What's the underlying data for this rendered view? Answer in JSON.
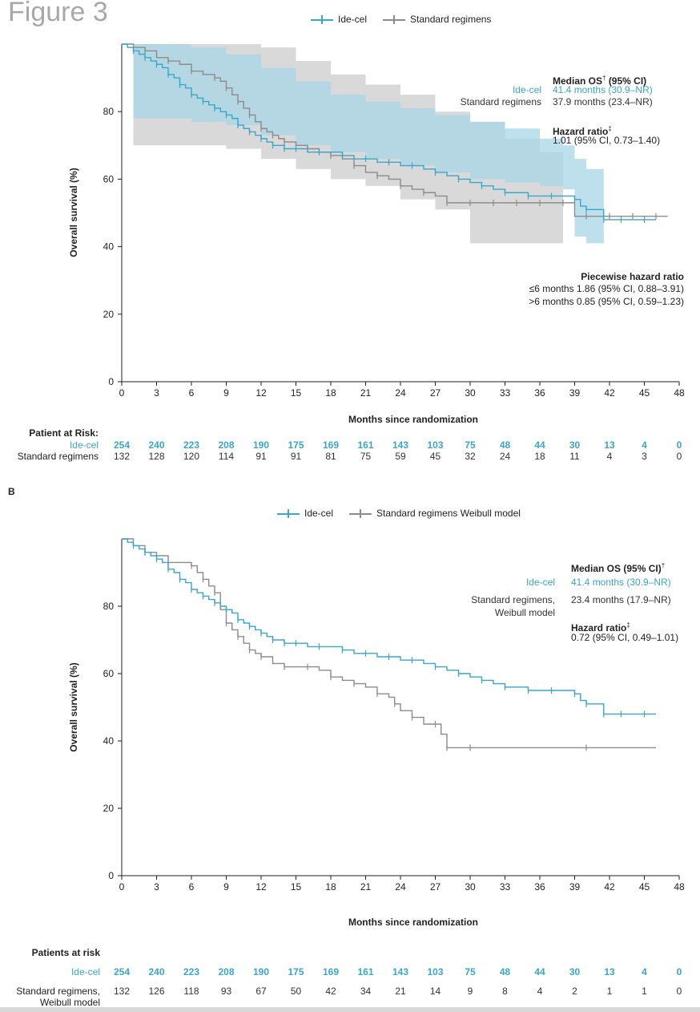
{
  "figure_title": "Figure 3",
  "panel_b_label": "B",
  "colors": {
    "ide_cel": "#3aa7c9",
    "standard": "#8c8c8c",
    "ci_ide": "#a8d6e6",
    "ci_std": "#d9d9d9"
  },
  "panelA": {
    "legend": {
      "ide_cel": "Ide-cel",
      "standard": "Standard regimens"
    },
    "ylabel": "Overall survival (%)",
    "xlabel": "Months since randomization",
    "median": {
      "heading": "Median OS",
      "heading_mark": "†",
      "heading_ci": "(95% CI)",
      "ide_label": "Ide-cel",
      "ide_value": "41.4 months (30.9–NR)",
      "std_label": "Standard regimens",
      "std_value": "37.9 months (23.4–NR)"
    },
    "hazard": {
      "heading": "Hazard ratio",
      "mark": "‡",
      "value": "1.01 (95% CI, 0.73–1.40)"
    },
    "piecewise": {
      "heading": "Piecewise hazard ratio",
      "line1": "≤6 months 1.86 (95% CI, 0.88–3.91)",
      "line2": ">6 months 0.85 (95% CI, 0.59–1.23)"
    },
    "risk": {
      "heading": "Patient at Risk:",
      "ide_label": "Ide-cel",
      "std_label": "Standard regimens",
      "ide": [
        "254",
        "240",
        "223",
        "208",
        "190",
        "175",
        "169",
        "161",
        "143",
        "103",
        "75",
        "48",
        "44",
        "30",
        "13",
        "4",
        "0"
      ],
      "std": [
        "132",
        "128",
        "120",
        "114",
        "91",
        "91",
        "81",
        "75",
        "59",
        "45",
        "32",
        "24",
        "18",
        "11",
        "4",
        "3",
        "0"
      ]
    }
  },
  "panelB": {
    "legend": {
      "ide_cel": "Ide-cel",
      "standard": "Standard regimens Weibull model"
    },
    "ylabel": "Overall survival (%)",
    "xlabel": "Months since randomization",
    "median": {
      "heading": "Median OS (95% CI)",
      "heading_mark": "†",
      "ide_label": "Ide-cel",
      "ide_value": "41.4 months (30.9–NR)",
      "std_label_1": "Standard regimens,",
      "std_label_2": "Weibull model",
      "std_value": "23.4 months (17.9–NR)"
    },
    "hazard": {
      "heading": "Hazard ratio",
      "mark": "‡",
      "value": "0.72 (95% CI, 0.49–1.01)"
    },
    "risk": {
      "heading": "Patients at risk",
      "ide_label": "Ide-cel",
      "std_label_1": "Standard regimens,",
      "std_label_2": "Weibull model",
      "ide": [
        "254",
        "240",
        "223",
        "208",
        "190",
        "175",
        "169",
        "161",
        "143",
        "103",
        "75",
        "48",
        "44",
        "30",
        "13",
        "4",
        "0"
      ],
      "std": [
        "132",
        "126",
        "118",
        "93",
        "67",
        "50",
        "42",
        "34",
        "21",
        "14",
        "9",
        "8",
        "4",
        "2",
        "1",
        "1",
        "0"
      ]
    }
  },
  "chart_data": [
    {
      "type": "line",
      "title": "",
      "xlabel": "Months since randomization",
      "ylabel": "Overall survival (%)",
      "xlim": [
        0,
        48
      ],
      "ylim": [
        0,
        100
      ],
      "xticks": [
        0,
        3,
        6,
        9,
        12,
        15,
        18,
        21,
        24,
        27,
        30,
        33,
        36,
        39,
        42,
        45,
        48
      ],
      "yticks": [
        0,
        20,
        40,
        60,
        80
      ],
      "legend": "top",
      "series": [
        {
          "name": "Ide-cel",
          "x": [
            0,
            0.5,
            1,
            1.5,
            2,
            2.5,
            3,
            3.5,
            4,
            4.5,
            5,
            5.5,
            6,
            6.5,
            7,
            7.5,
            8,
            8.5,
            9,
            9.5,
            10,
            10.5,
            11,
            11.5,
            12,
            12.5,
            13,
            13.5,
            14,
            14.5,
            15,
            16,
            17,
            18,
            19,
            20,
            21,
            22,
            23,
            24,
            25,
            26,
            27,
            28,
            29,
            30,
            31,
            32,
            33,
            34,
            35,
            36,
            37,
            38,
            39,
            39.5,
            40,
            41,
            41.5,
            42,
            43,
            44,
            45,
            46
          ],
          "y": [
            100,
            99,
            98,
            97,
            96,
            95,
            94,
            93,
            91,
            90,
            88,
            87,
            85,
            84,
            83,
            82,
            81,
            80,
            79,
            78,
            76,
            75,
            74,
            73,
            72,
            71,
            70,
            70,
            69,
            69,
            69,
            68,
            68,
            68,
            67,
            66,
            66,
            65,
            65,
            64,
            64,
            63,
            62,
            61,
            60,
            59,
            58,
            57,
            56,
            56,
            55,
            55,
            55,
            55,
            54,
            52,
            51,
            51,
            48,
            48,
            48,
            48,
            48,
            48
          ]
        },
        {
          "name": "Standard regimens",
          "x": [
            0,
            1,
            2,
            3,
            4,
            5,
            6,
            7,
            8,
            8.5,
            9,
            9.5,
            10,
            10.5,
            11,
            11.5,
            12,
            12.5,
            13,
            13.5,
            14,
            15,
            16,
            17,
            18,
            19,
            20,
            21,
            22,
            23,
            24,
            25,
            26,
            27,
            28,
            29,
            30,
            31,
            32,
            33,
            34,
            35,
            36,
            37,
            38,
            39,
            40,
            41,
            42,
            43,
            44,
            45,
            46,
            47
          ],
          "y": [
            100,
            99,
            98,
            96,
            95,
            94,
            92,
            91,
            90,
            89,
            87,
            85,
            83,
            81,
            79,
            77,
            75,
            74,
            73,
            72,
            71,
            70,
            69,
            68,
            67,
            66,
            64,
            62,
            61,
            60,
            58,
            57,
            56,
            55,
            53,
            53,
            53,
            53,
            53,
            53,
            53,
            53,
            53,
            53,
            53,
            49,
            49,
            49,
            49,
            49,
            49,
            49,
            49,
            49
          ]
        }
      ],
      "ci_bands": [
        {
          "name": "Ide-cel 95% CI",
          "x": [
            1,
            3,
            6,
            9,
            12,
            15,
            18,
            21,
            24,
            27,
            30,
            33,
            36,
            38,
            39,
            40,
            41.5
          ],
          "lower": [
            78,
            78,
            77,
            76,
            73,
            70,
            68,
            66,
            64,
            62,
            60,
            59,
            58,
            57,
            43,
            41,
            40
          ],
          "upper": [
            100,
            100,
            99,
            97,
            93,
            89,
            85,
            83,
            81,
            79,
            77,
            75,
            72,
            70,
            66,
            63,
            62
          ]
        },
        {
          "name": "Standard regimens 95% CI",
          "x": [
            1,
            3,
            6,
            9,
            12,
            15,
            18,
            21,
            24,
            27,
            30,
            33,
            36,
            38
          ],
          "lower": [
            70,
            70,
            70,
            69,
            66,
            63,
            60,
            58,
            54,
            51,
            41,
            41,
            41,
            41
          ],
          "upper": [
            100,
            100,
            100,
            100,
            99,
            95,
            91,
            88,
            85,
            80,
            77,
            72,
            68,
            65
          ]
        }
      ]
    },
    {
      "type": "line",
      "title": "",
      "xlabel": "Months since randomization",
      "ylabel": "Overall survival (%)",
      "xlim": [
        0,
        48
      ],
      "ylim": [
        0,
        100
      ],
      "xticks": [
        0,
        3,
        6,
        9,
        12,
        15,
        18,
        21,
        24,
        27,
        30,
        33,
        36,
        39,
        42,
        45,
        48
      ],
      "yticks": [
        0,
        20,
        40,
        60,
        80
      ],
      "legend": "top",
      "series": [
        {
          "name": "Ide-cel",
          "x": [
            0,
            0.5,
            1,
            1.5,
            2,
            2.5,
            3,
            3.5,
            4,
            4.5,
            5,
            5.5,
            6,
            6.5,
            7,
            7.5,
            8,
            8.5,
            9,
            9.5,
            10,
            10.5,
            11,
            11.5,
            12,
            12.5,
            13,
            13.5,
            14,
            14.5,
            15,
            16,
            17,
            18,
            19,
            20,
            21,
            22,
            23,
            24,
            25,
            26,
            27,
            28,
            29,
            30,
            31,
            32,
            33,
            34,
            35,
            36,
            37,
            38,
            39,
            39.5,
            40,
            41,
            41.5,
            42,
            43,
            44,
            45,
            46
          ],
          "y": [
            100,
            99,
            98,
            97,
            96,
            95,
            94,
            93,
            91,
            90,
            88,
            87,
            85,
            84,
            83,
            82,
            81,
            80,
            79,
            78,
            76,
            75,
            74,
            73,
            72,
            71,
            70,
            70,
            69,
            69,
            69,
            68,
            68,
            68,
            67,
            66,
            66,
            65,
            65,
            64,
            64,
            63,
            62,
            61,
            60,
            59,
            58,
            57,
            56,
            56,
            55,
            55,
            55,
            55,
            54,
            52,
            51,
            51,
            48,
            48,
            48,
            48,
            48,
            48
          ]
        },
        {
          "name": "Standard regimens Weibull model",
          "x": [
            0,
            1,
            2,
            3,
            4,
            5,
            6,
            6.5,
            7,
            7.5,
            8,
            8.5,
            9,
            9.5,
            10,
            10.5,
            11,
            11.5,
            12,
            13,
            14,
            15,
            16,
            17,
            18,
            19,
            20,
            21,
            22,
            23,
            23.5,
            24,
            25,
            26,
            27,
            27.5,
            28,
            29,
            30,
            35,
            40,
            46
          ],
          "y": [
            100,
            98,
            96,
            95,
            93,
            93,
            92,
            90,
            88,
            86,
            84,
            79,
            75,
            73,
            71,
            69,
            67,
            66,
            65,
            63,
            62,
            62,
            62,
            61,
            59,
            58,
            57,
            56,
            54,
            53,
            51,
            49,
            47,
            45,
            45,
            42,
            38,
            38,
            38,
            38,
            38,
            38
          ]
        }
      ]
    }
  ]
}
